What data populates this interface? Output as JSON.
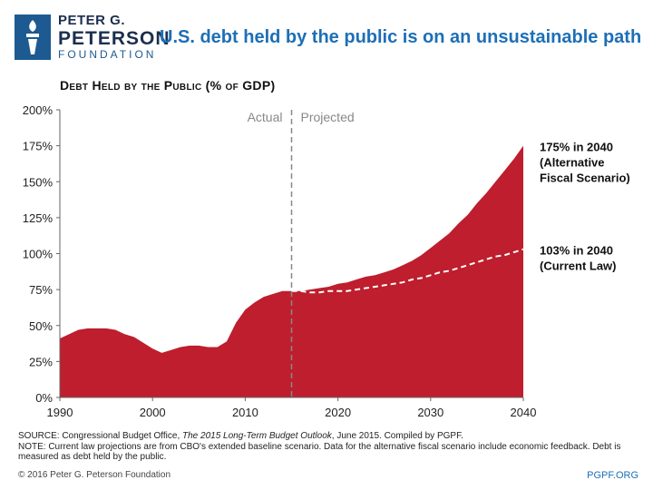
{
  "logo": {
    "line1": "PETER G.",
    "line2": "PETERSON",
    "line3": "FOUNDATION"
  },
  "header": {
    "title": "U.S. debt held by the public is on an unsustainable path",
    "subtitle": "Debt Held by the Public (% of GDP)"
  },
  "colors": {
    "area": "#be1e2d",
    "accent": "#1d6fb6",
    "logo": "#1d5a91"
  },
  "chart_data": {
    "type": "area",
    "title": "Debt Held by the Public (% of GDP)",
    "xlabel": "",
    "ylabel": "",
    "xlim": [
      1990,
      2040
    ],
    "ylim": [
      0,
      200
    ],
    "x_ticks": [
      1990,
      2000,
      2010,
      2020,
      2030,
      2040
    ],
    "y_ticks": [
      0,
      25,
      50,
      75,
      100,
      125,
      150,
      175,
      200
    ],
    "y_tick_labels": [
      "0%",
      "25%",
      "50%",
      "75%",
      "100%",
      "125%",
      "150%",
      "175%",
      "200%"
    ],
    "x_tick_labels": [
      "1990",
      "2000",
      "2010",
      "2020",
      "2030",
      "2040"
    ],
    "divider_year": 2015,
    "phase_labels": {
      "actual": "Actual",
      "projected": "Projected"
    },
    "series": [
      {
        "name": "Alternative Fiscal Scenario",
        "style": "filled-area",
        "x": [
          1990,
          1991,
          1992,
          1993,
          1994,
          1995,
          1996,
          1997,
          1998,
          1999,
          2000,
          2001,
          2002,
          2003,
          2004,
          2005,
          2006,
          2007,
          2008,
          2009,
          2010,
          2011,
          2012,
          2013,
          2014,
          2015,
          2016,
          2017,
          2018,
          2019,
          2020,
          2021,
          2022,
          2023,
          2024,
          2025,
          2026,
          2027,
          2028,
          2029,
          2030,
          2031,
          2032,
          2033,
          2034,
          2035,
          2036,
          2037,
          2038,
          2039,
          2040
        ],
        "values": [
          41,
          44,
          47,
          48,
          48,
          48,
          47,
          44,
          42,
          38,
          34,
          31,
          33,
          35,
          36,
          36,
          35,
          35,
          39,
          52,
          61,
          66,
          70,
          72,
          74,
          74,
          74,
          75,
          76,
          77,
          79,
          80,
          82,
          84,
          85,
          87,
          89,
          92,
          95,
          99,
          104,
          109,
          114,
          121,
          127,
          135,
          142,
          150,
          158,
          166,
          175
        ]
      },
      {
        "name": "Current Law",
        "style": "dashed-line",
        "x": [
          2015,
          2016,
          2017,
          2018,
          2019,
          2020,
          2021,
          2022,
          2023,
          2024,
          2025,
          2026,
          2027,
          2028,
          2029,
          2030,
          2031,
          2032,
          2033,
          2034,
          2035,
          2036,
          2037,
          2038,
          2039,
          2040
        ],
        "values": [
          74,
          74,
          73,
          73,
          74,
          74,
          74,
          75,
          76,
          77,
          78,
          79,
          80,
          82,
          83,
          85,
          87,
          88,
          90,
          92,
          94,
          96,
          98,
          99,
          101,
          103
        ]
      }
    ],
    "annotations": [
      {
        "lines": [
          "175% in 2040",
          "(Alternative",
          "Fiscal Scenario)"
        ]
      },
      {
        "lines": [
          "103% in 2040",
          "(Current Law)"
        ]
      }
    ]
  },
  "footer": {
    "source_prefix": "SOURCE: Congressional Budget Office, ",
    "source_italic": "The 2015 Long-Term Budget Outlook",
    "source_suffix": ", June 2015. Compiled by PGPF.",
    "note": "NOTE: Current law projections are from CBO's extended baseline scenario. Data for the alternative fiscal scenario include economic feedback. Debt is measured as debt held by the public.",
    "copyright": "© 2016 Peter G. Peterson Foundation",
    "site": "PGPF.ORG"
  }
}
